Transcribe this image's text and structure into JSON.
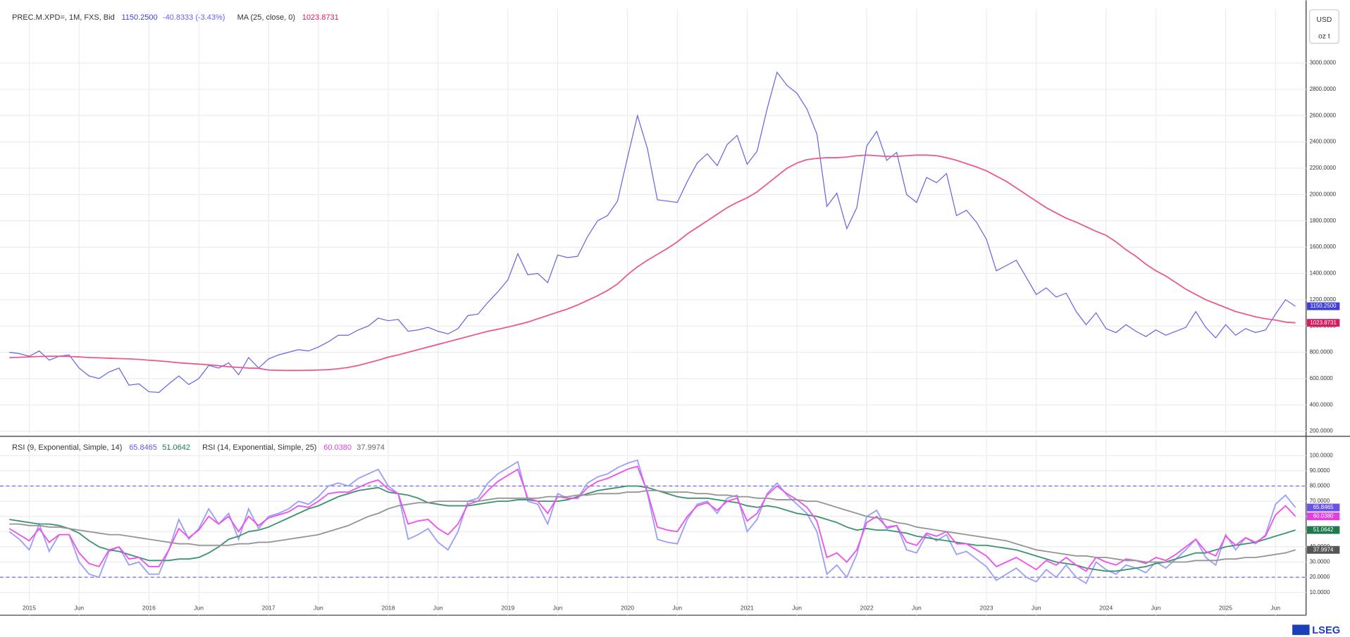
{
  "chart_data": [
    {
      "type": "line",
      "title": "PREC.M.XPD=, 1M, FXS, Bid",
      "change": "-40.8333 (-3.43%)",
      "currency": "USD",
      "unit": "oz t",
      "ylim": [
        174,
        3412
      ],
      "yticks": [
        {
          "value": 200,
          "label": "200.0000"
        },
        {
          "value": 400,
          "label": "400.0000"
        },
        {
          "value": 600,
          "label": "600.0000"
        },
        {
          "value": 800,
          "label": "800.0000"
        },
        {
          "value": 1000,
          "label": "1000.0000"
        },
        {
          "value": 1200,
          "label": "1200.0000"
        },
        {
          "value": 1400,
          "label": "1400.0000"
        },
        {
          "value": 1600,
          "label": "1600.0000"
        },
        {
          "value": 1800,
          "label": "1800.0000"
        },
        {
          "value": 2000,
          "label": "2000.0000"
        },
        {
          "value": 2200,
          "label": "2200.0000"
        },
        {
          "value": 2400,
          "label": "2400.0000"
        },
        {
          "value": 2600,
          "label": "2600.0000"
        },
        {
          "value": 2800,
          "label": "2800.0000"
        },
        {
          "value": 3000,
          "label": "3000.0000"
        }
      ],
      "grid": true,
      "series": [
        {
          "name": "PREC.M.XPD=, 1M, FXS, Bid",
          "color": "#6464e6",
          "tag_color": "#3f3fd4",
          "last_label": "1150.2500",
          "values": [
            800,
            790,
            770,
            810,
            740,
            770,
            780,
            680,
            620,
            600,
            650,
            680,
            550,
            560,
            500,
            495,
            560,
            620,
            555,
            600,
            700,
            680,
            720,
            630,
            760,
            680,
            750,
            780,
            800,
            820,
            810,
            840,
            880,
            930,
            930,
            970,
            1000,
            1060,
            1040,
            1050,
            960,
            970,
            990,
            960,
            940,
            980,
            1080,
            1090,
            1180,
            1260,
            1350,
            1550,
            1390,
            1400,
            1330,
            1540,
            1520,
            1530,
            1680,
            1800,
            1840,
            1950,
            2280,
            2600,
            2350,
            1960,
            1950,
            1940,
            2100,
            2240,
            2310,
            2220,
            2380,
            2450,
            2230,
            2330,
            2650,
            2930,
            2830,
            2770,
            2650,
            2460,
            1910,
            2010,
            1740,
            1900,
            2370,
            2480,
            2260,
            2320,
            2000,
            1940,
            2130,
            2090,
            2160,
            1840,
            1880,
            1790,
            1660,
            1420,
            1460,
            1500,
            1370,
            1240,
            1290,
            1220,
            1250,
            1110,
            1010,
            1100,
            980,
            950,
            1010,
            960,
            920,
            970,
            930,
            960,
            990,
            1110,
            990,
            910,
            1010,
            930,
            980,
            950,
            970,
            1090,
            1200,
            1150.25
          ]
        },
        {
          "name": "MA (25, close, 0)",
          "color": "#ec5b8e",
          "tag_color": "#d81b60",
          "last_label": "1023.8731",
          "values": [
            760,
            762,
            765,
            768,
            770,
            770,
            768,
            765,
            760,
            758,
            755,
            752,
            750,
            746,
            740,
            735,
            728,
            720,
            715,
            710,
            705,
            698,
            690,
            685,
            680,
            678,
            665,
            663,
            662,
            662,
            663,
            665,
            668,
            675,
            685,
            700,
            720,
            740,
            763,
            780,
            800,
            820,
            840,
            860,
            880,
            900,
            920,
            940,
            960,
            975,
            992,
            1010,
            1030,
            1055,
            1080,
            1105,
            1130,
            1160,
            1195,
            1230,
            1270,
            1320,
            1390,
            1450,
            1500,
            1545,
            1590,
            1640,
            1700,
            1750,
            1800,
            1850,
            1900,
            1940,
            1975,
            2020,
            2080,
            2140,
            2200,
            2240,
            2265,
            2275,
            2280,
            2280,
            2285,
            2295,
            2300,
            2295,
            2290,
            2290,
            2295,
            2300,
            2300,
            2295,
            2280,
            2260,
            2235,
            2210,
            2180,
            2140,
            2100,
            2050,
            2000,
            1950,
            1900,
            1860,
            1820,
            1790,
            1755,
            1720,
            1690,
            1640,
            1580,
            1530,
            1470,
            1420,
            1380,
            1330,
            1280,
            1240,
            1200,
            1170,
            1140,
            1110,
            1090,
            1070,
            1055,
            1045,
            1030,
            1023.8731
          ]
        }
      ]
    },
    {
      "type": "line",
      "categories": [
        null,
        null,
        "2015",
        null,
        null,
        null,
        null,
        "Jun",
        null,
        null,
        null,
        null,
        null,
        null,
        "2016",
        null,
        null,
        null,
        null,
        "Jun",
        null,
        null,
        null,
        null,
        null,
        null,
        "2017",
        null,
        null,
        null,
        null,
        "Jun",
        null,
        null,
        null,
        null,
        null,
        null,
        "2018",
        null,
        null,
        null,
        null,
        "Jun",
        null,
        null,
        null,
        null,
        null,
        null,
        "2019",
        null,
        null,
        null,
        null,
        "Jun",
        null,
        null,
        null,
        null,
        null,
        null,
        "2020",
        null,
        null,
        null,
        null,
        "Jun",
        null,
        null,
        null,
        null,
        null,
        null,
        "2021",
        null,
        null,
        null,
        null,
        "Jun",
        null,
        null,
        null,
        null,
        null,
        null,
        "2022",
        null,
        null,
        null,
        null,
        "Jun",
        null,
        null,
        null,
        null,
        null,
        null,
        "2023",
        null,
        null,
        null,
        null,
        "Jun",
        null,
        null,
        null,
        null,
        null,
        null,
        "2024",
        null,
        null,
        null,
        null,
        "Jun",
        null,
        null,
        null,
        null,
        null,
        null,
        "2025",
        null,
        null,
        null,
        null,
        "Jun",
        null,
        null
      ],
      "ylim": [
        -5,
        111
      ],
      "yticks": [
        {
          "value": 10,
          "label": "10.0000"
        },
        {
          "value": 20,
          "label": "20.0000"
        },
        {
          "value": 30,
          "label": "30.0000"
        },
        {
          "value": 40,
          "label": "40.0000"
        },
        {
          "value": 50,
          "label": "50.0000"
        },
        {
          "value": 60,
          "label": "60.0000"
        },
        {
          "value": 70,
          "label": "70.0000"
        },
        {
          "value": 80,
          "label": "80.0000"
        },
        {
          "value": 90,
          "label": "90.0000"
        },
        {
          "value": 100,
          "label": "100.0000"
        }
      ],
      "grid": true,
      "reference_lines": [
        80,
        20
      ],
      "reference_color": "#6b6bf0",
      "legend_groups": [
        "RSI (9, Exponential, Simple, 14)",
        "RSI (14, Exponential, Simple, 25)"
      ],
      "series": [
        {
          "name": "RSI (9)",
          "color": "#9aa0f7",
          "tag_color": "#6b52e8",
          "last_label": "65.8465",
          "values": [
            50,
            45,
            38,
            55,
            37,
            48,
            48,
            30,
            22,
            20,
            37,
            40,
            28,
            30,
            22,
            22,
            38,
            58,
            45,
            52,
            65,
            55,
            62,
            45,
            65,
            52,
            60,
            62,
            65,
            70,
            68,
            73,
            80,
            82,
            80,
            85,
            88,
            91,
            80,
            75,
            45,
            48,
            52,
            43,
            38,
            50,
            70,
            72,
            82,
            88,
            92,
            96,
            70,
            68,
            55,
            75,
            72,
            72,
            82,
            86,
            88,
            92,
            95,
            97,
            75,
            45,
            43,
            42,
            58,
            68,
            70,
            62,
            72,
            74,
            50,
            58,
            75,
            82,
            74,
            68,
            62,
            50,
            22,
            28,
            20,
            35,
            60,
            64,
            52,
            54,
            38,
            36,
            48,
            44,
            48,
            35,
            37,
            32,
            27,
            18,
            22,
            26,
            20,
            17,
            25,
            20,
            28,
            20,
            16,
            30,
            25,
            22,
            28,
            26,
            23,
            30,
            26,
            32,
            38,
            45,
            33,
            28,
            48,
            38,
            46,
            42,
            48,
            68,
            74,
            65.8465
          ]
        },
        {
          "name": "Signal (14)",
          "color": "#3f9270",
          "tag_color": "#1e7a4e",
          "last_label": "51.0642",
          "values": [
            58,
            57,
            56,
            55,
            55,
            54,
            52,
            49,
            44,
            40,
            38,
            37,
            35,
            33,
            31,
            31,
            31,
            32,
            32,
            33,
            36,
            40,
            45,
            47,
            50,
            51,
            53,
            56,
            59,
            62,
            65,
            67,
            70,
            73,
            75,
            77,
            78,
            79,
            76,
            75,
            74,
            72,
            69,
            68,
            67,
            67,
            67,
            68,
            69,
            70,
            70,
            71,
            71,
            70,
            70,
            70,
            71,
            73,
            75,
            77,
            78,
            79,
            80,
            80,
            79,
            77,
            75,
            73,
            72,
            72,
            72,
            71,
            70,
            69,
            67,
            66,
            67,
            66,
            64,
            62,
            61,
            60,
            58,
            56,
            53,
            51,
            52,
            51,
            51,
            50,
            49,
            47,
            46,
            45,
            44,
            43,
            42,
            41,
            41,
            40,
            39,
            38,
            36,
            34,
            32,
            30,
            29,
            28,
            26,
            25,
            24,
            24,
            25,
            26,
            27,
            29,
            30,
            32,
            34,
            36,
            36,
            38,
            40,
            41,
            42,
            43,
            45,
            47,
            49,
            51.0642
          ]
        },
        {
          "name": "RSI (14)",
          "color": "#f050f0",
          "tag_color": "#e040e0",
          "last_label": "60.0380",
          "values": [
            52,
            48,
            44,
            52,
            43,
            48,
            48,
            36,
            29,
            27,
            38,
            40,
            32,
            33,
            27,
            27,
            38,
            52,
            46,
            51,
            60,
            55,
            60,
            50,
            60,
            54,
            59,
            61,
            63,
            67,
            66,
            70,
            75,
            76,
            76,
            79,
            82,
            84,
            78,
            75,
            55,
            57,
            58,
            52,
            48,
            55,
            68,
            70,
            77,
            83,
            87,
            91,
            72,
            70,
            62,
            73,
            72,
            72,
            79,
            83,
            85,
            88,
            91,
            93,
            76,
            53,
            51,
            50,
            60,
            67,
            69,
            64,
            70,
            72,
            57,
            62,
            74,
            80,
            75,
            71,
            66,
            57,
            33,
            36,
            30,
            38,
            56,
            60,
            53,
            54,
            43,
            41,
            49,
            47,
            50,
            42,
            42,
            38,
            34,
            27,
            30,
            33,
            29,
            25,
            31,
            28,
            33,
            28,
            24,
            33,
            30,
            28,
            32,
            31,
            29,
            33,
            31,
            35,
            40,
            45,
            37,
            34,
            47,
            41,
            46,
            43,
            47,
            61,
            67,
            60.038
          ]
        },
        {
          "name": "Signal (25)",
          "color": "#959595",
          "tag_color": "#555555",
          "last_label": "37.9974",
          "values": [
            55,
            55,
            54,
            54,
            53,
            53,
            52,
            51,
            50,
            49,
            48,
            48,
            47,
            46,
            45,
            44,
            43,
            42,
            42,
            41,
            41,
            41,
            41,
            42,
            42,
            43,
            43,
            44,
            45,
            46,
            47,
            48,
            50,
            52,
            54,
            57,
            60,
            62,
            65,
            67,
            68,
            69,
            69,
            70,
            70,
            70,
            70,
            70,
            71,
            72,
            72,
            72,
            72,
            72,
            73,
            73,
            73,
            74,
            74,
            75,
            75,
            75,
            76,
            76,
            77,
            77,
            76,
            76,
            76,
            75,
            75,
            74,
            74,
            73,
            73,
            72,
            72,
            71,
            71,
            71,
            70,
            70,
            68,
            66,
            64,
            62,
            60,
            59,
            58,
            56,
            55,
            53,
            52,
            51,
            50,
            49,
            48,
            47,
            46,
            45,
            44,
            42,
            40,
            38,
            37,
            36,
            35,
            34,
            34,
            33,
            33,
            32,
            31,
            31,
            30,
            30,
            30,
            30,
            30,
            31,
            31,
            31,
            32,
            32,
            33,
            33,
            34,
            35,
            36,
            37.9974
          ]
        }
      ]
    }
  ],
  "brand": "LSEG"
}
